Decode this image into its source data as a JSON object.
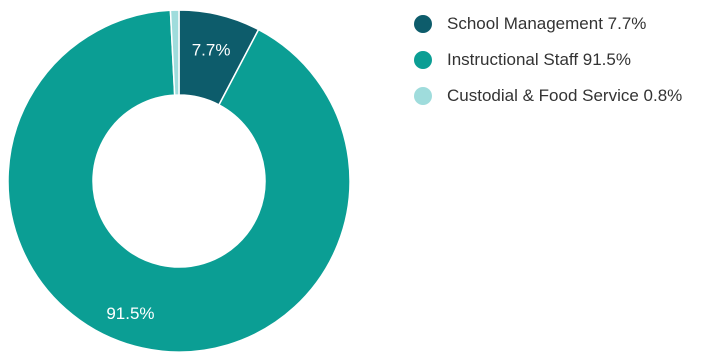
{
  "chart_data": {
    "type": "pie",
    "donut": true,
    "categories": [
      "School Management",
      "Instructional Staff",
      "Custodial & Food Service"
    ],
    "values": [
      7.7,
      91.5,
      0.8
    ],
    "value_labels": [
      "7.7%",
      "91.5%",
      "0.8%"
    ],
    "colors": [
      "#0d5c6b",
      "#0b9e94",
      "#9fdcdc"
    ],
    "legend_labels": [
      "School Management 7.7%",
      "Instructional Staff 91.5%",
      "Custodial & Food Service 0.8%"
    ],
    "legend_position": "right",
    "title": ""
  }
}
